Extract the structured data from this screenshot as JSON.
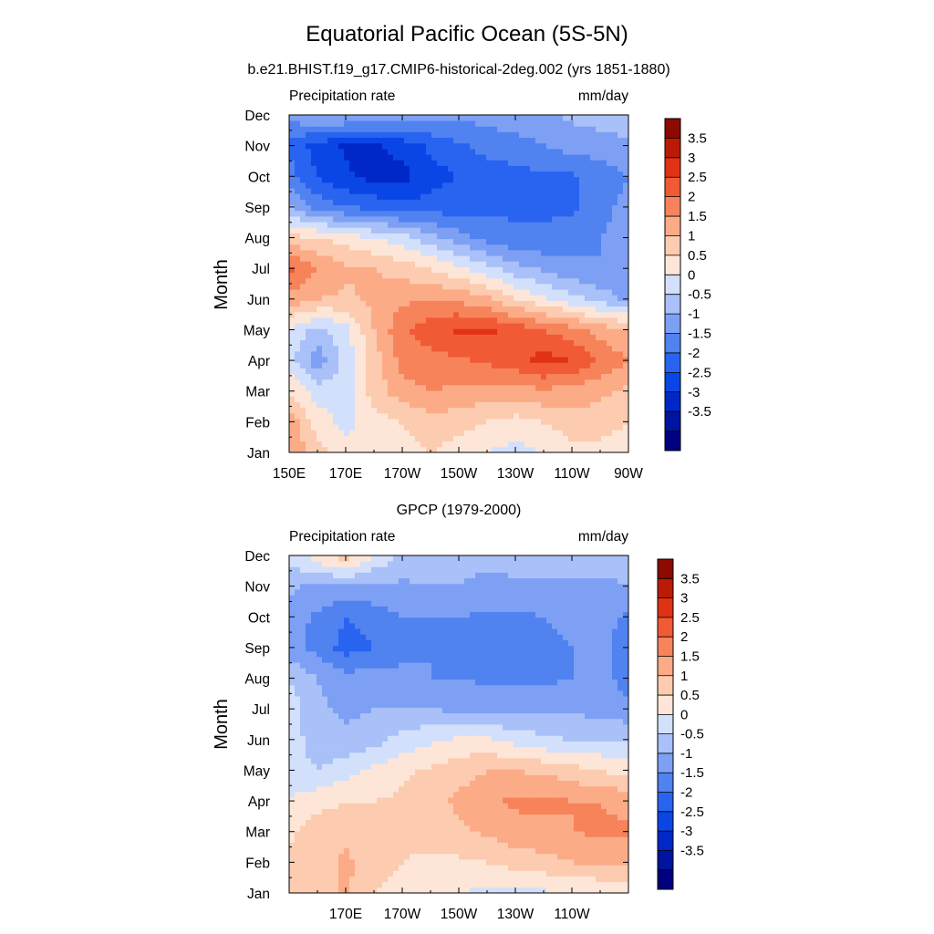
{
  "figure": {
    "title": "Equatorial Pacific Ocean (5S-5N)",
    "colors": [
      "#000080",
      "#0014a0",
      "#0028c8",
      "#0a46e6",
      "#2864f0",
      "#5082f0",
      "#7ea0f4",
      "#a9c0f8",
      "#d2e0fc",
      "#fde6d7",
      "#fccbb0",
      "#fcab87",
      "#f7835b",
      "#f05a34",
      "#e03214",
      "#bb1b06",
      "#8c0a00"
    ],
    "panels": [
      {
        "subtitle": "b.e21.BHIST.f19_g17.CMIP6-historical-2deg.002 (yrs 1851-1880)",
        "left_label": "Precipitation rate",
        "right_label": "mm/day",
        "chart_data": {
          "type": "heatmap",
          "title": "b.e21.BHIST.f19_g17.CMIP6-historical-2deg.002 (yrs 1851-1880)",
          "ylabel": "Month",
          "x_ticks": [
            "150E",
            "170E",
            "170W",
            "150W",
            "130W",
            "110W",
            "90W"
          ],
          "y_ticks": [
            "Jan",
            "Feb",
            "Mar",
            "Apr",
            "May",
            "Jun",
            "Jul",
            "Aug",
            "Sep",
            "Oct",
            "Nov",
            "Dec"
          ],
          "xlim": [
            "150E",
            "90W"
          ],
          "colorbar_ticks": [
            "3.5",
            "3",
            "2.5",
            "2",
            "1.5",
            "1",
            "0.5",
            "0",
            "-0.5",
            "-1",
            "-1.5",
            "-2",
            "-2.5",
            "-3",
            "-3.5"
          ],
          "x": [
            150,
            160,
            170,
            180,
            190,
            200,
            210,
            220,
            230,
            240,
            250,
            260,
            270
          ],
          "y": [
            "Jan",
            "Feb",
            "Mar",
            "Apr",
            "May",
            "Jun",
            "Jul",
            "Aug",
            "Sep",
            "Oct",
            "Nov",
            "Dec"
          ],
          "z": [
            [
              2.0,
              1.2,
              0.8,
              0.5,
              0.8,
              1.0,
              0.8,
              0.5,
              0.3,
              0.5,
              0.8,
              0.8,
              0.6
            ],
            [
              1.8,
              0.8,
              0.3,
              0.8,
              1.0,
              1.3,
              1.2,
              1.0,
              0.8,
              1.0,
              1.3,
              1.3,
              1.0
            ],
            [
              1.0,
              0.2,
              0.3,
              1.2,
              1.8,
              2.0,
              1.9,
              1.8,
              1.8,
              1.9,
              1.8,
              1.6,
              1.4
            ],
            [
              0.2,
              -0.8,
              0.2,
              1.2,
              2.2,
              2.3,
              2.4,
              2.6,
              2.8,
              3.2,
              3.0,
              2.4,
              2.0
            ],
            [
              0.5,
              -0.2,
              0.3,
              1.5,
              2.4,
              2.8,
              3.1,
              3.1,
              2.8,
              2.5,
              2.2,
              1.8,
              1.5
            ],
            [
              1.8,
              1.5,
              1.4,
              1.6,
              1.9,
              2.0,
              1.9,
              1.6,
              1.0,
              0.6,
              0.2,
              -0.2,
              -0.6
            ],
            [
              2.6,
              2.0,
              1.6,
              1.5,
              1.3,
              1.0,
              0.6,
              0.2,
              -0.3,
              -0.6,
              -0.9,
              -1.0,
              -1.0
            ],
            [
              1.2,
              1.0,
              0.8,
              0.5,
              0.2,
              -0.3,
              -0.8,
              -1.2,
              -1.4,
              -1.4,
              -1.2,
              -1.0,
              -0.8
            ],
            [
              -0.4,
              -1.2,
              -1.5,
              -1.6,
              -1.8,
              -1.8,
              -1.7,
              -1.6,
              -1.6,
              -1.6,
              -1.6,
              -1.2,
              -0.8
            ],
            [
              -1.3,
              -2.0,
              -2.4,
              -2.7,
              -2.7,
              -2.2,
              -2.0,
              -1.8,
              -1.7,
              -1.6,
              -1.6,
              -1.3,
              -1.0
            ],
            [
              -1.6,
              -2.2,
              -2.6,
              -2.6,
              -2.3,
              -1.9,
              -1.6,
              -1.3,
              -1.2,
              -1.0,
              -0.8,
              -0.7,
              -0.6
            ],
            [
              -0.8,
              -0.5,
              -0.4,
              -0.5,
              -0.7,
              -0.8,
              -0.9,
              -0.8,
              -0.7,
              -0.6,
              -0.4,
              -0.3,
              -0.2
            ]
          ]
        }
      },
      {
        "subtitle": "GPCP (1979-2000)",
        "left_label": "Precipitation rate",
        "right_label": "mm/day",
        "chart_data": {
          "type": "heatmap",
          "title": "GPCP (1979-2000)",
          "ylabel": "Month",
          "x_ticks": [
            "170E",
            "170W",
            "150W",
            "130W",
            "110W"
          ],
          "y_ticks": [
            "Jan",
            "Feb",
            "Mar",
            "Apr",
            "May",
            "Jun",
            "Jul",
            "Aug",
            "Sep",
            "Oct",
            "Nov",
            "Dec"
          ],
          "xlim": [
            "150E",
            "90W"
          ],
          "colorbar_ticks": [
            "3.5",
            "3",
            "2.5",
            "2",
            "1.5",
            "1",
            "0.5",
            "0",
            "-0.5",
            "-1",
            "-1.5",
            "-2",
            "-2.5",
            "-3",
            "-3.5"
          ],
          "x": [
            150,
            160,
            170,
            180,
            190,
            200,
            210,
            220,
            230,
            240,
            250,
            260,
            270
          ],
          "y": [
            "Jan",
            "Feb",
            "Mar",
            "Apr",
            "May",
            "Jun",
            "Jul",
            "Aug",
            "Sep",
            "Oct",
            "Nov",
            "Dec"
          ],
          "z": [
            [
              1.0,
              1.2,
              1.6,
              1.0,
              0.8,
              0.6,
              0.5,
              0.4,
              0.3,
              0.4,
              0.5,
              0.6,
              0.6
            ],
            [
              1.1,
              1.3,
              1.6,
              1.3,
              1.0,
              0.9,
              0.9,
              1.0,
              1.2,
              1.3,
              1.5,
              1.5,
              1.5
            ],
            [
              0.9,
              1.3,
              1.4,
              1.2,
              1.1,
              1.2,
              1.4,
              1.6,
              1.8,
              1.9,
              2.0,
              2.1,
              2.1
            ],
            [
              0.5,
              0.8,
              1.0,
              1.0,
              1.1,
              1.3,
              1.6,
              1.9,
              2.1,
              2.1,
              2.0,
              2.0,
              1.8
            ],
            [
              0.3,
              0.0,
              0.3,
              0.6,
              0.9,
              1.1,
              1.3,
              1.5,
              1.5,
              1.4,
              1.2,
              1.0,
              0.8
            ],
            [
              0.3,
              -0.3,
              -0.4,
              -0.2,
              0.2,
              0.4,
              0.6,
              0.6,
              0.3,
              0.1,
              0.0,
              0.0,
              0.0
            ],
            [
              0.3,
              -0.4,
              -0.6,
              -0.5,
              -0.5,
              -0.5,
              -0.6,
              -0.6,
              -0.6,
              -0.6,
              -0.6,
              -0.7,
              -0.9
            ],
            [
              0.0,
              -0.5,
              -0.8,
              -0.8,
              -0.9,
              -1.0,
              -1.0,
              -1.1,
              -1.1,
              -1.1,
              -1.0,
              -0.8,
              -1.2
            ],
            [
              -0.8,
              -1.2,
              -1.7,
              -1.5,
              -1.1,
              -1.0,
              -1.1,
              -1.2,
              -1.2,
              -1.1,
              -1.0,
              -0.8,
              -1.3
            ],
            [
              -0.7,
              -1.1,
              -1.5,
              -1.3,
              -1.0,
              -1.0,
              -1.0,
              -1.1,
              -1.1,
              -1.0,
              -0.9,
              -0.8,
              -1.1
            ],
            [
              -0.4,
              -0.6,
              -0.6,
              -0.6,
              -0.6,
              -0.5,
              -0.5,
              -0.6,
              -0.6,
              -0.6,
              -0.6,
              -0.6,
              -0.5
            ],
            [
              0.1,
              0.8,
              1.3,
              0.5,
              -0.1,
              -0.3,
              -0.4,
              -0.4,
              -0.3,
              -0.3,
              -0.3,
              -0.3,
              -0.3
            ]
          ]
        }
      }
    ]
  }
}
